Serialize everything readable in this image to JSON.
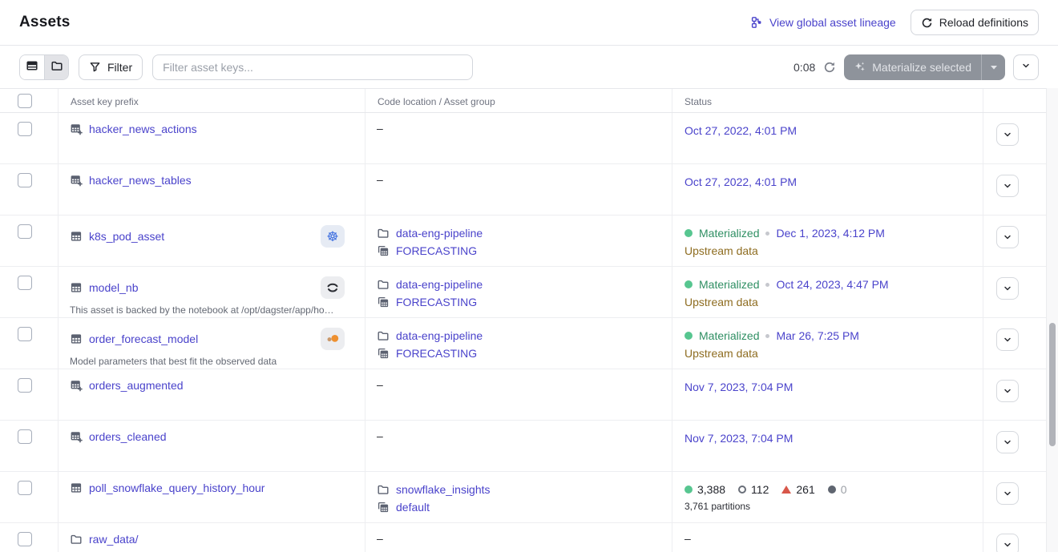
{
  "header": {
    "title": "Assets",
    "lineage_link": "View global asset lineage",
    "reload_button": "Reload definitions"
  },
  "toolbar": {
    "filter_button": "Filter",
    "filter_placeholder": "Filter asset keys...",
    "timer": "0:08",
    "materialize_button": "Materialize selected"
  },
  "table": {
    "dash": "–",
    "columns": [
      "Asset key prefix",
      "Code location / Asset group",
      "Status"
    ],
    "rows": [
      {
        "name": "hacker_news_actions",
        "icon": "table-plus",
        "badge": null,
        "description": null,
        "location": null,
        "status": {
          "type": "time",
          "time": "Oct 27, 2022, 4:01 PM"
        }
      },
      {
        "name": "hacker_news_tables",
        "icon": "table-plus",
        "badge": null,
        "description": null,
        "location": null,
        "status": {
          "type": "time",
          "time": "Oct 27, 2022, 4:01 PM"
        }
      },
      {
        "name": "k8s_pod_asset",
        "icon": "table",
        "badge": "kubernetes",
        "description": null,
        "location": {
          "code_location": "data-eng-pipeline",
          "group": "FORECASTING"
        },
        "status": {
          "type": "materialized",
          "label": "Materialized",
          "time": "Dec 1, 2023, 4:12 PM",
          "note": "Upstream data"
        }
      },
      {
        "name": "model_nb",
        "icon": "table",
        "badge": "notebook",
        "description": "This asset is backed by the notebook at /opt/dagster/app/ho…",
        "location": {
          "code_location": "data-eng-pipeline",
          "group": "FORECASTING"
        },
        "status": {
          "type": "materialized",
          "label": "Materialized",
          "time": "Oct 24, 2023, 4:47 PM",
          "note": "Upstream data"
        }
      },
      {
        "name": "order_forecast_model",
        "icon": "table",
        "badge": "noteable",
        "description": "Model parameters that best fit the observed data",
        "location": {
          "code_location": "data-eng-pipeline",
          "group": "FORECASTING"
        },
        "status": {
          "type": "materialized",
          "label": "Materialized",
          "time": "Mar 26, 7:25 PM",
          "note": "Upstream data"
        }
      },
      {
        "name": "orders_augmented",
        "icon": "table-plus",
        "badge": null,
        "description": null,
        "location": null,
        "status": {
          "type": "time",
          "time": "Nov 7, 2023, 7:04 PM"
        }
      },
      {
        "name": "orders_cleaned",
        "icon": "table-plus",
        "badge": null,
        "description": null,
        "location": null,
        "status": {
          "type": "time",
          "time": "Nov 7, 2023, 7:04 PM"
        }
      },
      {
        "name": "poll_snowflake_query_history_hour",
        "icon": "table",
        "badge": null,
        "description": null,
        "location": {
          "code_location": "snowflake_insights",
          "group": "default"
        },
        "status": {
          "type": "partitions",
          "counts": [
            {
              "icon": "green-dot",
              "value": "3,388"
            },
            {
              "icon": "outline-circle",
              "value": "112"
            },
            {
              "icon": "red-triangle",
              "value": "261"
            },
            {
              "icon": "gray-dot",
              "value": "0"
            }
          ],
          "note": "3,761 partitions"
        }
      },
      {
        "name": "raw_data/",
        "icon": "folder",
        "badge": null,
        "description": null,
        "location": null,
        "status": {
          "type": "dash"
        }
      }
    ]
  },
  "colors": {
    "link": "#4A43CB",
    "materialized_green": "#2F8F63",
    "green_dot": "#57C690",
    "upstream_warning": "#8E6C20",
    "kubernetes_blue": "#3E6FE0",
    "noteable_orange": "#EE9030",
    "failed_red": "#D8574A"
  }
}
